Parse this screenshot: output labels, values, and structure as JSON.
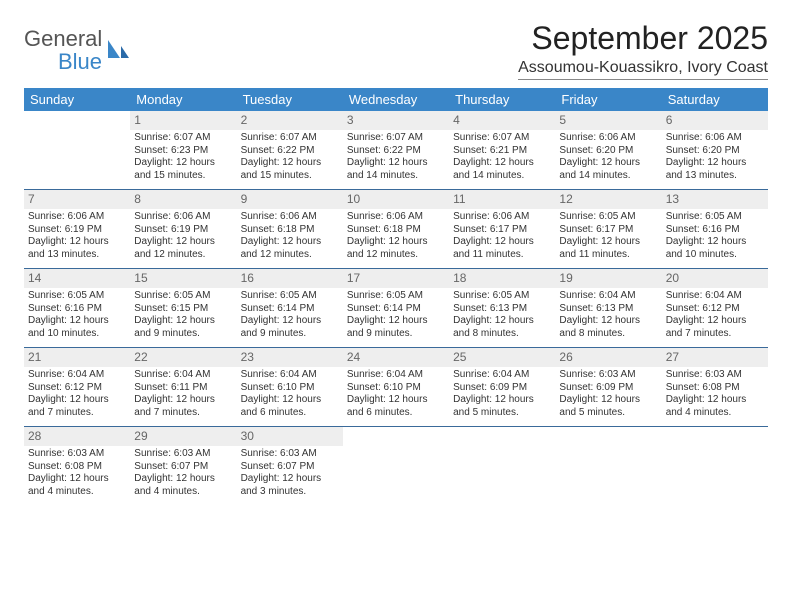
{
  "logo": {
    "text1": "General",
    "text2": "Blue",
    "icon_color": "#3a86c8"
  },
  "title": "September 2025",
  "location": "Assoumou-Kouassikro, Ivory Coast",
  "colors": {
    "header_bg": "#3a86c8",
    "header_text": "#ffffff",
    "daynum_bg": "#eeeeee",
    "daynum_text": "#666666",
    "row_border": "#3a6a9a",
    "body_text": "#333333",
    "background": "#ffffff"
  },
  "fonts": {
    "title_size": 32,
    "location_size": 16,
    "weekday_size": 13,
    "daynum_size": 12,
    "body_size": 10
  },
  "weekdays": [
    "Sunday",
    "Monday",
    "Tuesday",
    "Wednesday",
    "Thursday",
    "Friday",
    "Saturday"
  ],
  "weeks": [
    [
      null,
      {
        "n": "1",
        "sr": "Sunrise: 6:07 AM",
        "ss": "Sunset: 6:23 PM",
        "dl": "Daylight: 12 hours and 15 minutes."
      },
      {
        "n": "2",
        "sr": "Sunrise: 6:07 AM",
        "ss": "Sunset: 6:22 PM",
        "dl": "Daylight: 12 hours and 15 minutes."
      },
      {
        "n": "3",
        "sr": "Sunrise: 6:07 AM",
        "ss": "Sunset: 6:22 PM",
        "dl": "Daylight: 12 hours and 14 minutes."
      },
      {
        "n": "4",
        "sr": "Sunrise: 6:07 AM",
        "ss": "Sunset: 6:21 PM",
        "dl": "Daylight: 12 hours and 14 minutes."
      },
      {
        "n": "5",
        "sr": "Sunrise: 6:06 AM",
        "ss": "Sunset: 6:20 PM",
        "dl": "Daylight: 12 hours and 14 minutes."
      },
      {
        "n": "6",
        "sr": "Sunrise: 6:06 AM",
        "ss": "Sunset: 6:20 PM",
        "dl": "Daylight: 12 hours and 13 minutes."
      }
    ],
    [
      {
        "n": "7",
        "sr": "Sunrise: 6:06 AM",
        "ss": "Sunset: 6:19 PM",
        "dl": "Daylight: 12 hours and 13 minutes."
      },
      {
        "n": "8",
        "sr": "Sunrise: 6:06 AM",
        "ss": "Sunset: 6:19 PM",
        "dl": "Daylight: 12 hours and 12 minutes."
      },
      {
        "n": "9",
        "sr": "Sunrise: 6:06 AM",
        "ss": "Sunset: 6:18 PM",
        "dl": "Daylight: 12 hours and 12 minutes."
      },
      {
        "n": "10",
        "sr": "Sunrise: 6:06 AM",
        "ss": "Sunset: 6:18 PM",
        "dl": "Daylight: 12 hours and 12 minutes."
      },
      {
        "n": "11",
        "sr": "Sunrise: 6:06 AM",
        "ss": "Sunset: 6:17 PM",
        "dl": "Daylight: 12 hours and 11 minutes."
      },
      {
        "n": "12",
        "sr": "Sunrise: 6:05 AM",
        "ss": "Sunset: 6:17 PM",
        "dl": "Daylight: 12 hours and 11 minutes."
      },
      {
        "n": "13",
        "sr": "Sunrise: 6:05 AM",
        "ss": "Sunset: 6:16 PM",
        "dl": "Daylight: 12 hours and 10 minutes."
      }
    ],
    [
      {
        "n": "14",
        "sr": "Sunrise: 6:05 AM",
        "ss": "Sunset: 6:16 PM",
        "dl": "Daylight: 12 hours and 10 minutes."
      },
      {
        "n": "15",
        "sr": "Sunrise: 6:05 AM",
        "ss": "Sunset: 6:15 PM",
        "dl": "Daylight: 12 hours and 9 minutes."
      },
      {
        "n": "16",
        "sr": "Sunrise: 6:05 AM",
        "ss": "Sunset: 6:14 PM",
        "dl": "Daylight: 12 hours and 9 minutes."
      },
      {
        "n": "17",
        "sr": "Sunrise: 6:05 AM",
        "ss": "Sunset: 6:14 PM",
        "dl": "Daylight: 12 hours and 9 minutes."
      },
      {
        "n": "18",
        "sr": "Sunrise: 6:05 AM",
        "ss": "Sunset: 6:13 PM",
        "dl": "Daylight: 12 hours and 8 minutes."
      },
      {
        "n": "19",
        "sr": "Sunrise: 6:04 AM",
        "ss": "Sunset: 6:13 PM",
        "dl": "Daylight: 12 hours and 8 minutes."
      },
      {
        "n": "20",
        "sr": "Sunrise: 6:04 AM",
        "ss": "Sunset: 6:12 PM",
        "dl": "Daylight: 12 hours and 7 minutes."
      }
    ],
    [
      {
        "n": "21",
        "sr": "Sunrise: 6:04 AM",
        "ss": "Sunset: 6:12 PM",
        "dl": "Daylight: 12 hours and 7 minutes."
      },
      {
        "n": "22",
        "sr": "Sunrise: 6:04 AM",
        "ss": "Sunset: 6:11 PM",
        "dl": "Daylight: 12 hours and 7 minutes."
      },
      {
        "n": "23",
        "sr": "Sunrise: 6:04 AM",
        "ss": "Sunset: 6:10 PM",
        "dl": "Daylight: 12 hours and 6 minutes."
      },
      {
        "n": "24",
        "sr": "Sunrise: 6:04 AM",
        "ss": "Sunset: 6:10 PM",
        "dl": "Daylight: 12 hours and 6 minutes."
      },
      {
        "n": "25",
        "sr": "Sunrise: 6:04 AM",
        "ss": "Sunset: 6:09 PM",
        "dl": "Daylight: 12 hours and 5 minutes."
      },
      {
        "n": "26",
        "sr": "Sunrise: 6:03 AM",
        "ss": "Sunset: 6:09 PM",
        "dl": "Daylight: 12 hours and 5 minutes."
      },
      {
        "n": "27",
        "sr": "Sunrise: 6:03 AM",
        "ss": "Sunset: 6:08 PM",
        "dl": "Daylight: 12 hours and 4 minutes."
      }
    ],
    [
      {
        "n": "28",
        "sr": "Sunrise: 6:03 AM",
        "ss": "Sunset: 6:08 PM",
        "dl": "Daylight: 12 hours and 4 minutes."
      },
      {
        "n": "29",
        "sr": "Sunrise: 6:03 AM",
        "ss": "Sunset: 6:07 PM",
        "dl": "Daylight: 12 hours and 4 minutes."
      },
      {
        "n": "30",
        "sr": "Sunrise: 6:03 AM",
        "ss": "Sunset: 6:07 PM",
        "dl": "Daylight: 12 hours and 3 minutes."
      },
      null,
      null,
      null,
      null
    ]
  ]
}
